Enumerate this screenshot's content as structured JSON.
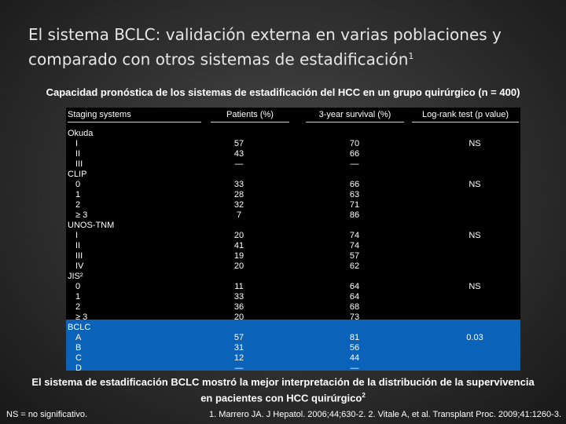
{
  "title": {
    "text": "El sistema BCLC: validación externa en varias poblaciones y comparado con otros sistemas de estadificación",
    "sup": "1"
  },
  "subtitle": "Capacidad pronóstica de los sistemas de estadificación del  HCC en un grupo quirúrgico (n = 400)",
  "table": {
    "headers": {
      "system": "Staging systems",
      "patients": "Patients (%)",
      "survival": "3-year survival (%)",
      "logrank": "Log-rank test (p value)"
    },
    "rows": [
      {
        "system": "Okuda",
        "patients": "",
        "survival": "",
        "logrank": "",
        "indent": false
      },
      {
        "system": "I",
        "patients": "57",
        "survival": "70",
        "logrank": "NS",
        "indent": true
      },
      {
        "system": "II",
        "patients": "43",
        "survival": "66",
        "logrank": "",
        "indent": true
      },
      {
        "system": "III",
        "patients": "—",
        "survival": "—",
        "logrank": "",
        "indent": true
      },
      {
        "system": "CLIP",
        "patients": "",
        "survival": "",
        "logrank": "",
        "indent": false
      },
      {
        "system": "0",
        "patients": "33",
        "survival": "66",
        "logrank": "NS",
        "indent": true
      },
      {
        "system": "1",
        "patients": "28",
        "survival": "63",
        "logrank": "",
        "indent": true
      },
      {
        "system": "2",
        "patients": "32",
        "survival": "71",
        "logrank": "",
        "indent": true
      },
      {
        "system": "≥ 3",
        "patients": "7",
        "survival": "86",
        "logrank": "",
        "indent": true
      },
      {
        "system": "UNOS-TNM",
        "patients": "",
        "survival": "",
        "logrank": "",
        "indent": false
      },
      {
        "system": "I",
        "patients": "20",
        "survival": "74",
        "logrank": "NS",
        "indent": true
      },
      {
        "system": "II",
        "patients": "41",
        "survival": "74",
        "logrank": "",
        "indent": true
      },
      {
        "system": "III",
        "patients": "19",
        "survival": "57",
        "logrank": "",
        "indent": true
      },
      {
        "system": "IV",
        "patients": "20",
        "survival": "62",
        "logrank": "",
        "indent": true
      },
      {
        "system": "JIS²",
        "patients": "",
        "survival": "",
        "logrank": "",
        "indent": false
      },
      {
        "system": "0",
        "patients": "11",
        "survival": "64",
        "logrank": "NS",
        "indent": true
      },
      {
        "system": "1",
        "patients": "33",
        "survival": "64",
        "logrank": "",
        "indent": true
      },
      {
        "system": "2",
        "patients": "36",
        "survival": "68",
        "logrank": "",
        "indent": true
      },
      {
        "system": "≥ 3",
        "patients": "20",
        "survival": "73",
        "logrank": "",
        "indent": true
      },
      {
        "system": "BCLC",
        "patients": "",
        "survival": "",
        "logrank": "",
        "indent": false
      },
      {
        "system": "A",
        "patients": "57",
        "survival": "81",
        "logrank": "0.03",
        "indent": true
      },
      {
        "system": "B",
        "patients": "31",
        "survival": "56",
        "logrank": "",
        "indent": true
      },
      {
        "system": "C",
        "patients": "12",
        "survival": "44",
        "logrank": "",
        "indent": true
      },
      {
        "system": "D",
        "patients": "—",
        "survival": "—",
        "logrank": "",
        "indent": true
      }
    ]
  },
  "conclusion": {
    "text": "El sistema de estadificación BCLC mostró la mejor interpretación de la distribución de la supervivencia en pacientes con HCC quirúrgico",
    "sup": "2"
  },
  "footnote": "NS = no significativo.",
  "references": "1. Marrero JA. J Hepatol. 2006;44;630-2. 2. Vitale A, et al. Transplant Proc. 2009;41:1260-3.",
  "colors": {
    "highlight": "#0a63b8",
    "table_bg": "#000000"
  }
}
